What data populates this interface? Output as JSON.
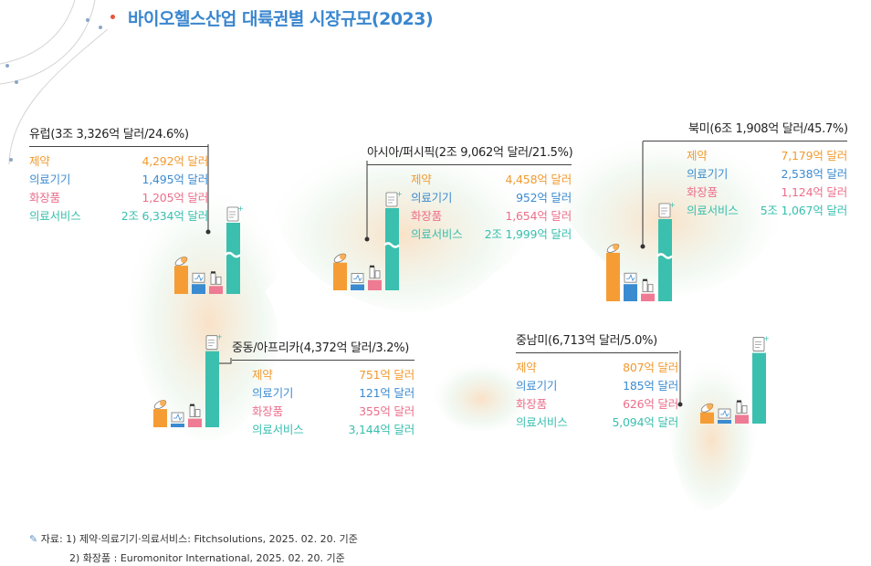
{
  "title": "바이오헬스산업 대륙권별 시장규모(2023)",
  "categories_labels": [
    "제약",
    "의료기기",
    "화장품",
    "의료서비스"
  ],
  "colors": {
    "pharma": "#f59d34",
    "device": "#3b8bd1",
    "cosmetics": "#ee7b93",
    "service": "#3bbfae",
    "title": "#3a86cf"
  },
  "chart_data": [
    {
      "type": "bar",
      "region": "유럽",
      "title": "유럽(3조 3,326억 달러/24.6%)",
      "categories": [
        "제약",
        "의료기기",
        "화장품",
        "의료서비스"
      ],
      "values": [
        4292,
        1495,
        1205,
        26334
      ],
      "labels": [
        "4,292억 달러",
        "1,495억 달러",
        "1,205억 달러",
        "2조 6,334억 달러"
      ],
      "unit": "억 달러",
      "axis_break": true
    },
    {
      "type": "bar",
      "region": "아시아/퍼시픽",
      "title": "아시아/퍼시픽(2조 9,062억 달러/21.5%)",
      "categories": [
        "제약",
        "의료기기",
        "화장품",
        "의료서비스"
      ],
      "values": [
        4458,
        952,
        1654,
        21999
      ],
      "labels": [
        "4,458억 달러",
        "952억 달러",
        "1,654억 달러",
        "2조 1,999억 달러"
      ],
      "unit": "억 달러",
      "axis_break": true
    },
    {
      "type": "bar",
      "region": "북미",
      "title": "북미(6조 1,908억 달러/45.7%)",
      "categories": [
        "제약",
        "의료기기",
        "화장품",
        "의료서비스"
      ],
      "values": [
        7179,
        2538,
        1124,
        51067
      ],
      "labels": [
        "7,179억 달러",
        "2,538억 달러",
        "1,124억 달러",
        "5조 1,067억 달러"
      ],
      "unit": "억 달러",
      "axis_break": true
    },
    {
      "type": "bar",
      "region": "중동/아프리카",
      "title": "중동/아프리카(4,372억 달러/3.2%)",
      "categories": [
        "제약",
        "의료기기",
        "화장품",
        "의료서비스"
      ],
      "values": [
        751,
        121,
        355,
        3144
      ],
      "labels": [
        "751억 달러",
        "121억 달러",
        "355억 달러",
        "3,144억 달러"
      ],
      "unit": "억 달러",
      "axis_break": false
    },
    {
      "type": "bar",
      "region": "중남미",
      "title": "중남미(6,713억 달러/5.0%)",
      "categories": [
        "제약",
        "의료기기",
        "화장품",
        "의료서비스"
      ],
      "values": [
        807,
        185,
        626,
        5094
      ],
      "labels": [
        "807억 달러",
        "185억 달러",
        "626억 달러",
        "5,094억 달러"
      ],
      "unit": "억 달러",
      "axis_break": false
    }
  ],
  "footnotes": {
    "line1": "자료: 1) 제약·의료기기·의료서비스: Fitchsolutions, 2025. 02. 20. 기준",
    "line2": "2) 화장품 : Euromonitor International, 2025. 02. 20. 기준"
  }
}
